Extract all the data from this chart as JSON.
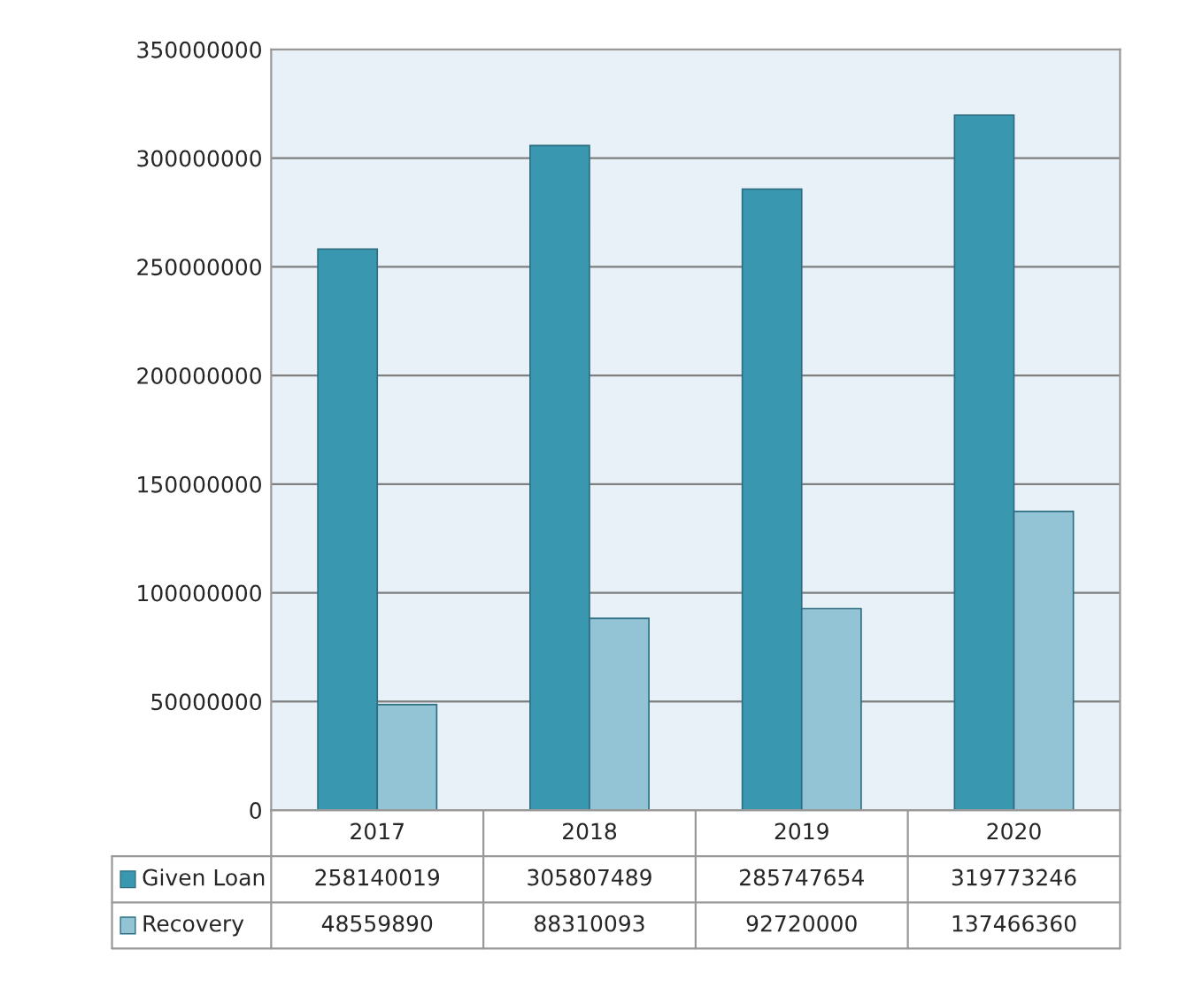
{
  "chart_data": {
    "type": "bar",
    "categories": [
      "2017",
      "2018",
      "2019",
      "2020"
    ],
    "series": [
      {
        "name": "Given Loan",
        "color": "#3a97b0",
        "values": [
          258140019,
          305807489,
          285747654,
          319773246
        ]
      },
      {
        "name": "Recovery",
        "color": "#92c4d6",
        "values": [
          48559890,
          88310093,
          92720000,
          137466360
        ]
      }
    ],
    "ylim": [
      0,
      350000000
    ],
    "yticks": [
      0,
      50000000,
      100000000,
      150000000,
      200000000,
      250000000,
      300000000,
      350000000
    ],
    "grid": "y",
    "legend": "bottom",
    "data_labels": true
  }
}
